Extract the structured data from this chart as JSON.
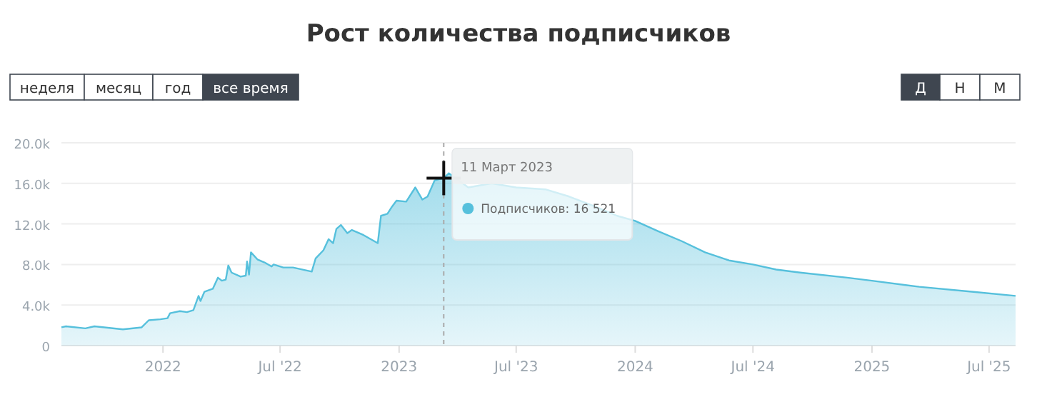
{
  "chart_data": {
    "type": "area",
    "title": "Рост количества подписчиков",
    "series": [
      {
        "color": "#56c0dc",
        "x": [
          "2021-07-28",
          "2021-08-04",
          "2021-09-03",
          "2021-09-17",
          "2021-10-31",
          "2021-11-29",
          "2021-12-10",
          "2021-12-28",
          "2022-01-08",
          "2022-01-12",
          "2022-01-27",
          "2022-02-07",
          "2022-02-17",
          "2022-02-25",
          "2022-02-28",
          "2022-03-06",
          "2022-03-19",
          "2022-03-27",
          "2022-04-02",
          "2022-04-08",
          "2022-04-12",
          "2022-04-17",
          "2022-05-01",
          "2022-05-09",
          "2022-05-11",
          "2022-05-14",
          "2022-05-17",
          "2022-05-27",
          "2022-06-07",
          "2022-06-18",
          "2022-06-21",
          "2022-07-06",
          "2022-07-21",
          "2022-08-19",
          "2022-08-25",
          "2022-09-06",
          "2022-09-14",
          "2022-09-21",
          "2022-09-26",
          "2022-10-03",
          "2022-10-13",
          "2022-10-20",
          "2022-10-31",
          "2022-11-07",
          "2022-11-29",
          "2022-12-04",
          "2022-12-14",
          "2022-12-21",
          "2022-12-28",
          "2023-01-12",
          "2023-01-26",
          "2023-02-06",
          "2023-02-14",
          "2023-02-25",
          "2023-03-11",
          "2023-03-19",
          "2023-04-18",
          "2023-05-24",
          "2023-07-01",
          "2023-08-16",
          "2023-09-21",
          "2023-10-28",
          "2023-12-04",
          "2024-01-01",
          "2024-02-05",
          "2024-03-13",
          "2024-04-18",
          "2024-05-25",
          "2024-07-01",
          "2024-08-06",
          "2024-09-12",
          "2024-11-24",
          "2025-01-01",
          "2025-03-15",
          "2025-06-07",
          "2025-08-11"
        ],
        "values": [
          1800,
          1900,
          1700,
          1900,
          1600,
          1800,
          2500,
          2600,
          2700,
          3200,
          3400,
          3300,
          3500,
          4900,
          4400,
          5300,
          5600,
          6700,
          6400,
          6500,
          7900,
          7200,
          6800,
          6900,
          8300,
          7000,
          9200,
          8500,
          8200,
          7800,
          8000,
          7700,
          7700,
          7300,
          8600,
          9400,
          10500,
          10100,
          11500,
          11900,
          11100,
          11400,
          11100,
          10900,
          10100,
          12800,
          13000,
          13700,
          14300,
          14200,
          15600,
          14400,
          14700,
          16300,
          16521,
          17000,
          15600,
          16000,
          15600,
          15400,
          14700,
          13800,
          12800,
          12300,
          11300,
          10300,
          9200,
          8400,
          8000,
          7500,
          7200,
          6700,
          6400,
          5800,
          5300,
          4900
        ]
      }
    ],
    "xlim": [
      "2021-07-28",
      "2025-08-11"
    ],
    "xticks": [
      {
        "value": "2022-01-01",
        "label": "2022"
      },
      {
        "value": "2022-07-01",
        "label": "Jul '22"
      },
      {
        "value": "2023-01-01",
        "label": "2023"
      },
      {
        "value": "2023-07-01",
        "label": "Jul '23"
      },
      {
        "value": "2024-01-01",
        "label": "2024"
      },
      {
        "value": "2024-07-01",
        "label": "Jul '24"
      },
      {
        "value": "2025-01-01",
        "label": "2025"
      },
      {
        "value": "2025-07-01",
        "label": "Jul '25"
      }
    ],
    "ylim": [
      0,
      20000
    ],
    "yticks": [
      0,
      {
        "value": 4000,
        "label": "4.0k"
      },
      {
        "value": 8000,
        "label": "8.0k"
      },
      {
        "value": 12000,
        "label": "12.0k"
      },
      {
        "value": 16000,
        "label": "16.0k"
      },
      {
        "value": 20000,
        "label": "20.0k"
      }
    ],
    "grid": "y",
    "marker": "none",
    "line_style": "solid",
    "ref_lines": [
      {
        "axis": "x",
        "value": "2023-03-11",
        "color": "#aaaaaa",
        "line_style": "dashed"
      }
    ],
    "annotations": [
      {
        "text": "11 Март 2023",
        "x": "2023-03-11",
        "y": 16521
      },
      "Подписчиков: 16 521",
      "неделя",
      "месяц",
      "год",
      "все время",
      "Д",
      "Н",
      "М"
    ]
  }
}
